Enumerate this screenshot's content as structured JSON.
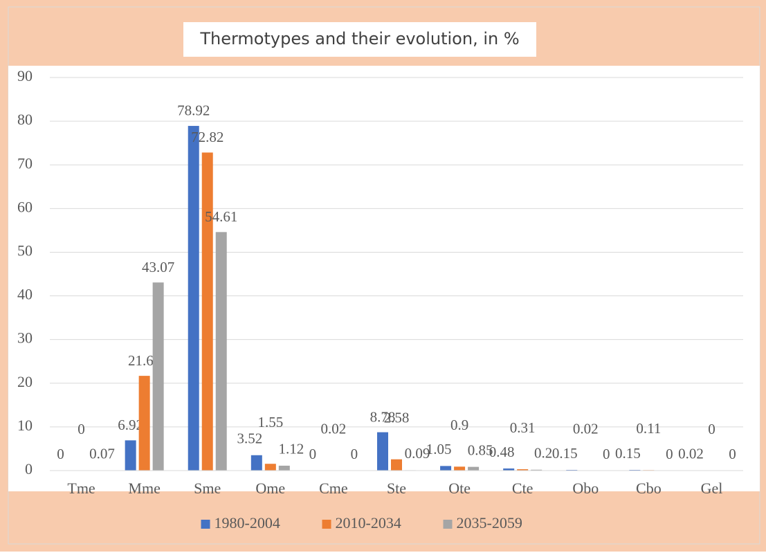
{
  "chart_data": {
    "type": "bar",
    "title": "Thermotypes and their evolution, in %",
    "categories": [
      "Tme",
      "Mme",
      "Sme",
      "Ome",
      "Cme",
      "Ste",
      "Ote",
      "Cte",
      "Obo",
      "Cbo",
      "Gel"
    ],
    "series": [
      {
        "name": "1980-2004",
        "color": "#4472c4",
        "values": [
          0,
          6.92,
          78.92,
          3.52,
          0,
          8.78,
          1.05,
          0.48,
          0.15,
          0.15,
          0.02
        ]
      },
      {
        "name": "2010-2034",
        "color": "#ed7d31",
        "values": [
          0,
          21.69,
          72.82,
          1.55,
          0.02,
          2.58,
          0.9,
          0.31,
          0.02,
          0.11,
          0
        ]
      },
      {
        "name": "2035-2059",
        "color": "#a5a5a5",
        "values": [
          0.07,
          43.07,
          54.61,
          1.12,
          0,
          0.09,
          0.85,
          0.2,
          0,
          0,
          0
        ]
      }
    ],
    "ylim": [
      0,
      90
    ],
    "yticks": [
      0,
      10,
      20,
      30,
      40,
      50,
      60,
      70,
      80,
      90
    ],
    "grid": true,
    "legend": "bottom"
  }
}
